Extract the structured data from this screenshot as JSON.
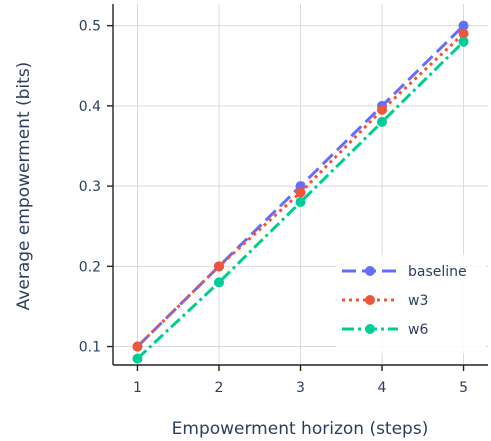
{
  "chart_data": {
    "type": "line",
    "title": "",
    "xlabel": "Empowerment horizon (steps)",
    "ylabel": "Average empowerment (bits)",
    "x": [
      1,
      2,
      3,
      4,
      5
    ],
    "xticks": [
      "1",
      "2",
      "3",
      "4",
      "5"
    ],
    "xlim": [
      0.7,
      5.3
    ],
    "yticks": [
      "0.1",
      "0.2",
      "0.3",
      "0.4",
      "0.5"
    ],
    "ylim": [
      0.077,
      0.527
    ],
    "grid": true,
    "legend_position": "bottom-right",
    "series": [
      {
        "name": "baseline",
        "color": "#636efa",
        "dash": "dash",
        "values": [
          0.1,
          0.2,
          0.3,
          0.4,
          0.5
        ]
      },
      {
        "name": "w3",
        "color": "#ef553b",
        "dash": "dot",
        "values": [
          0.1,
          0.2,
          0.292,
          0.395,
          0.49
        ]
      },
      {
        "name": "w6",
        "color": "#00cc96",
        "dash": "dashdot",
        "values": [
          0.085,
          0.18,
          0.28,
          0.38,
          0.48
        ]
      }
    ]
  }
}
